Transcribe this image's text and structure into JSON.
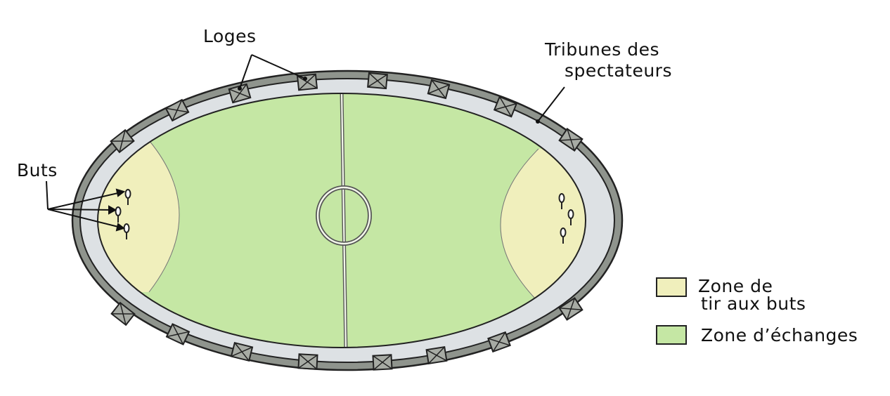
{
  "labels": {
    "loges": "Loges",
    "tribunes_line1": "Tribunes des",
    "tribunes_line2": "spectateurs",
    "buts": "Buts"
  },
  "legend": {
    "shooting_zone_line1": "Zone de",
    "shooting_zone_line2": "tir aux buts",
    "exchange_zone": "Zone d’échanges"
  },
  "colors": {
    "outer_ring": "#8f948d",
    "stands": "#dde1e4",
    "exchange_zone": "#c5e7a4",
    "shooting_zone": "#f0efbc",
    "box_fill": "#a7aba4",
    "lines": "#222222",
    "field_line": "#f4f8ec"
  },
  "icons": {
    "loge_box": "crossed-square-icon",
    "goal": "goal-hoop-icon"
  }
}
